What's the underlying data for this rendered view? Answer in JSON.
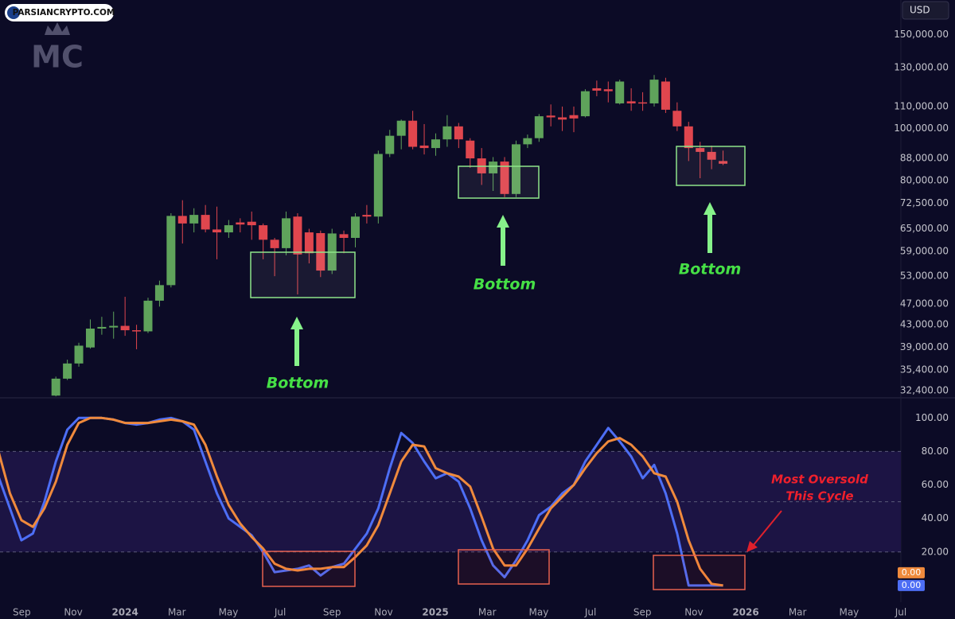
{
  "watermark": "PARSIANCRYPTO.COM",
  "logo": "MC",
  "chart_data": [
    {
      "type": "candlestick",
      "currency": "USD",
      "log_scale": true,
      "grid": false,
      "up_color": "#5fa35b",
      "down_color": "#e0464e",
      "xlim": [
        2023.597,
        2026.5
      ],
      "ylim": [
        31400,
        174000
      ],
      "yticks": [
        {
          "value": 150000,
          "label": "150,000.00"
        },
        {
          "value": 130000,
          "label": "130,000.00"
        },
        {
          "value": 110000,
          "label": "110,000.00"
        },
        {
          "value": 100000,
          "label": "100,000.00"
        },
        {
          "value": 88000,
          "label": "88,000.00"
        },
        {
          "value": 80000,
          "label": "80,000.00"
        },
        {
          "value": 72500,
          "label": "72,500.00"
        },
        {
          "value": 65000,
          "label": "65,000.00"
        },
        {
          "value": 59000,
          "label": "59,000.00"
        },
        {
          "value": 53000,
          "label": "53,000.00"
        },
        {
          "value": 47000,
          "label": "47,000.00"
        },
        {
          "value": 43000,
          "label": "43,000.00"
        },
        {
          "value": 39000,
          "label": "39,000.00"
        },
        {
          "value": 35400,
          "label": "35,400.00"
        },
        {
          "value": 32400,
          "label": "32,400.00"
        }
      ],
      "x": [
        2023.777,
        2023.814,
        2023.851,
        2023.888,
        2023.925,
        2023.963,
        2024.0,
        2024.037,
        2024.074,
        2024.111,
        2024.148,
        2024.185,
        2024.222,
        2024.259,
        2024.296,
        2024.334,
        2024.371,
        2024.408,
        2024.445,
        2024.482,
        2024.519,
        2024.556,
        2024.593,
        2024.63,
        2024.667,
        2024.705,
        2024.742,
        2024.779,
        2024.816,
        2024.853,
        2024.89,
        2024.927,
        2024.964,
        2025.001,
        2025.038,
        2025.075,
        2025.112,
        2025.149,
        2025.186,
        2025.223,
        2025.26,
        2025.297,
        2025.334,
        2025.372,
        2025.409,
        2025.446,
        2025.483,
        2025.52,
        2025.557,
        2025.594,
        2025.631,
        2025.668,
        2025.705,
        2025.742,
        2025.779,
        2025.816,
        2025.853,
        2025.89,
        2025.927
      ],
      "open": [
        31700,
        34100,
        36400,
        39000,
        42300,
        42500,
        42800,
        42000,
        41800,
        47700,
        51000,
        68700,
        66500,
        69000,
        64800,
        64000,
        66800,
        67000,
        66000,
        62000,
        59800,
        68500,
        64000,
        63800,
        54300,
        63500,
        62500,
        69000,
        68500,
        89700,
        97000,
        103500,
        93000,
        92000,
        95500,
        101000,
        95000,
        88000,
        82500,
        86800,
        75500,
        93500,
        96000,
        105800,
        105000,
        106000,
        105500,
        119000,
        118500,
        111500,
        112500,
        112000,
        111500,
        122500,
        108000,
        101000,
        92000,
        90500,
        87000
      ],
      "high": [
        34400,
        37000,
        39800,
        44000,
        44500,
        45500,
        48500,
        43000,
        48300,
        52000,
        69500,
        73500,
        71000,
        72000,
        71500,
        67500,
        68000,
        70000,
        66500,
        62500,
        70000,
        69500,
        65000,
        64500,
        65000,
        64500,
        69500,
        72000,
        91000,
        99500,
        104000,
        108000,
        102000,
        98000,
        106000,
        102500,
        96000,
        92000,
        88500,
        88500,
        95000,
        97500,
        106500,
        111000,
        110000,
        110000,
        118500,
        123000,
        122500,
        123500,
        119000,
        117000,
        126000,
        124500,
        112000,
        103000,
        94500,
        93000,
        91000
      ],
      "low": [
        31600,
        33900,
        35900,
        38800,
        41200,
        40500,
        41000,
        38700,
        41500,
        46500,
        50500,
        61000,
        64000,
        64000,
        57000,
        62500,
        64000,
        62000,
        57000,
        53000,
        58000,
        49000,
        56000,
        52800,
        53500,
        58500,
        60000,
        66500,
        66500,
        88500,
        91500,
        91500,
        89500,
        89000,
        92500,
        92000,
        84500,
        78500,
        76500,
        74500,
        74500,
        92000,
        94500,
        101000,
        99000,
        98500,
        105000,
        115000,
        112000,
        111000,
        108000,
        108000,
        110000,
        107000,
        99000,
        87000,
        80800,
        84000,
        85500
      ],
      "close": [
        34100,
        36400,
        39300,
        42300,
        42600,
        42800,
        42000,
        41800,
        47700,
        51000,
        68700,
        66500,
        69000,
        64800,
        64000,
        66000,
        66200,
        66000,
        62000,
        59800,
        68000,
        58200,
        58500,
        54300,
        63700,
        62500,
        68500,
        68500,
        89700,
        97000,
        103500,
        92500,
        92000,
        95500,
        101000,
        95500,
        88000,
        82500,
        86800,
        75500,
        93500,
        96000,
        105500,
        105000,
        104000,
        104500,
        117500,
        117800,
        117500,
        122500,
        111500,
        111500,
        123500,
        108500,
        101000,
        92000,
        90500,
        87500,
        86000
      ],
      "annotations": [
        "Bottom",
        "Bottom",
        "Bottom"
      ]
    },
    {
      "type": "line",
      "grid": false,
      "band_color": "#1c1444",
      "hlines": [
        80,
        50,
        20
      ],
      "xlim": [
        2023.597,
        2026.5
      ],
      "ylim": [
        -10,
        112
      ],
      "yticks": [
        {
          "value": 100,
          "label": "100.00"
        },
        {
          "value": 80,
          "label": "80.00"
        },
        {
          "value": 60,
          "label": "60.00"
        },
        {
          "value": 40,
          "label": "40.00"
        },
        {
          "value": 20,
          "label": "20.00"
        }
      ],
      "xticks": [
        {
          "value": 2023.667,
          "label": "Sep"
        },
        {
          "value": 2023.833,
          "label": "Nov"
        },
        2024,
        {
          "value": 2024.167,
          "label": "Mar"
        },
        {
          "value": 2024.333,
          "label": "May"
        },
        {
          "value": 2024.5,
          "label": "Jul"
        },
        {
          "value": 2024.667,
          "label": "Sep"
        },
        {
          "value": 2024.833,
          "label": "Nov"
        },
        2025,
        {
          "value": 2025.167,
          "label": "Mar"
        },
        {
          "value": 2025.333,
          "label": "May"
        },
        {
          "value": 2025.5,
          "label": "Jul"
        },
        {
          "value": 2025.667,
          "label": "Sep"
        },
        {
          "value": 2025.833,
          "label": "Nov"
        },
        2026,
        {
          "value": 2026.167,
          "label": "Mar"
        },
        {
          "value": 2026.333,
          "label": "May"
        },
        {
          "value": 2026.5,
          "label": "Jul"
        }
      ],
      "x": [
        2023.592,
        2023.629,
        2023.666,
        2023.703,
        2023.74,
        2023.777,
        2023.814,
        2023.851,
        2023.888,
        2023.925,
        2023.963,
        2024.0,
        2024.037,
        2024.074,
        2024.111,
        2024.148,
        2024.185,
        2024.222,
        2024.259,
        2024.296,
        2024.334,
        2024.371,
        2024.408,
        2024.445,
        2024.482,
        2024.519,
        2024.556,
        2024.593,
        2024.63,
        2024.667,
        2024.705,
        2024.742,
        2024.779,
        2024.816,
        2024.853,
        2024.89,
        2024.927,
        2024.964,
        2025.001,
        2025.038,
        2025.075,
        2025.112,
        2025.149,
        2025.186,
        2025.223,
        2025.26,
        2025.297,
        2025.334,
        2025.372,
        2025.409,
        2025.446,
        2025.483,
        2025.52,
        2025.557,
        2025.594,
        2025.631,
        2025.668,
        2025.705,
        2025.742,
        2025.779,
        2025.816,
        2025.853,
        2025.89,
        2025.927
      ],
      "series": [
        {
          "color": "#4d6ef5",
          "last_label": "0.00",
          "values": [
            65,
            46,
            27,
            31,
            50,
            74,
            93,
            100,
            100,
            100,
            99,
            97,
            96,
            97,
            99,
            100,
            98,
            93,
            74,
            55,
            40,
            35,
            30,
            20,
            8,
            9,
            10,
            12,
            6,
            11,
            13,
            22,
            31,
            46,
            70,
            91,
            85,
            74,
            64,
            67,
            62,
            46,
            27,
            12,
            5,
            15,
            27,
            42,
            47,
            55,
            60,
            74,
            84,
            94,
            86,
            77,
            64,
            72,
            55,
            31,
            0,
            0,
            0,
            0
          ]
        },
        {
          "color": "#f08a3c",
          "last_label": "0.00",
          "values": [
            80,
            55,
            39,
            35,
            46,
            62,
            84,
            97,
            100,
            100,
            99,
            97,
            97,
            97,
            98,
            99,
            98,
            96,
            84,
            65,
            48,
            37,
            29,
            22,
            13,
            10,
            9,
            10,
            10,
            11,
            11,
            17,
            24,
            36,
            55,
            74,
            84,
            83,
            70,
            67,
            65,
            59,
            41,
            22,
            12,
            12,
            22,
            34,
            46,
            53,
            60,
            70,
            79,
            86,
            88,
            84,
            77,
            67,
            65,
            50,
            27,
            10,
            1,
            0
          ]
        }
      ],
      "annotation": [
        "Most Oversold",
        "This Cycle"
      ]
    }
  ]
}
